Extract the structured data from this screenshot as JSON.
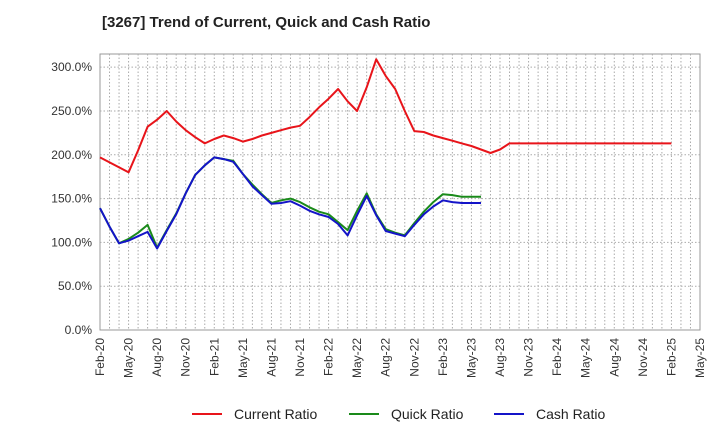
{
  "chart_data": {
    "type": "line",
    "title": "[3267]  Trend of Current, Quick and Cash Ratio",
    "xlabel": "",
    "ylabel": "",
    "ylim": [
      0,
      315
    ],
    "yticks": [
      0,
      50,
      100,
      150,
      200,
      250,
      300
    ],
    "ytick_labels": [
      "0.0%",
      "50.0%",
      "100.0%",
      "150.0%",
      "200.0%",
      "250.0%",
      "300.0%"
    ],
    "categories": [
      "Feb-20",
      "May-20",
      "Aug-20",
      "Nov-20",
      "Feb-21",
      "May-21",
      "Aug-21",
      "Nov-21",
      "Feb-22",
      "May-22",
      "Aug-22",
      "Nov-22",
      "Feb-23",
      "May-23",
      "Aug-23",
      "Nov-23",
      "Feb-24",
      "May-24",
      "Aug-24",
      "Nov-24",
      "Feb-25",
      "May-25"
    ],
    "x_label_index_step": 3,
    "grid": true,
    "legend_position": "bottom",
    "series": [
      {
        "name": "Current Ratio",
        "color": "#e8141a",
        "x": [
          0,
          3,
          4,
          5,
          6,
          7,
          8,
          9,
          10,
          11,
          12,
          13,
          14,
          15,
          16,
          17,
          18,
          19,
          20,
          21,
          22,
          23,
          24,
          25,
          26,
          27,
          28,
          29,
          30,
          31,
          32,
          33,
          34,
          35,
          36,
          37,
          38,
          39,
          40,
          41,
          42,
          43,
          44,
          45,
          46,
          47,
          48,
          49,
          50,
          51,
          52,
          53,
          54,
          55,
          56,
          57,
          58,
          59,
          60
        ],
        "values": [
          197,
          180,
          205,
          232,
          240,
          250,
          238,
          228,
          220,
          213,
          218,
          222,
          219,
          215,
          218,
          222,
          225,
          228,
          231,
          233,
          243,
          254,
          264,
          275,
          261,
          250,
          277,
          309,
          290,
          275,
          250,
          227,
          226,
          222,
          219,
          216,
          213,
          210,
          206,
          202,
          206,
          213,
          213,
          213,
          213,
          213,
          213,
          213,
          213,
          213,
          213,
          213,
          213,
          213,
          213,
          213,
          213,
          213,
          213
        ]
      },
      {
        "name": "Quick Ratio",
        "color": "#1a8a1a",
        "x": [
          0,
          1,
          2,
          3,
          4,
          5,
          6,
          7,
          8,
          9,
          10,
          11,
          12,
          13,
          14,
          15,
          16,
          17,
          18,
          19,
          20,
          21,
          22,
          23,
          24,
          25,
          26,
          27,
          28,
          29,
          30,
          31,
          32,
          33,
          34,
          35,
          36,
          37,
          38,
          39,
          40
        ],
        "values": [
          139,
          118,
          99,
          104,
          111,
          120,
          94,
          114,
          133,
          156,
          177,
          188,
          197,
          195,
          193,
          178,
          166,
          155,
          145,
          148,
          150,
          146,
          140,
          135,
          132,
          123,
          114,
          136,
          156,
          132,
          115,
          111,
          108,
          122,
          135,
          146,
          155,
          154,
          152,
          152,
          152
        ]
      },
      {
        "name": "Cash Ratio",
        "color": "#1414c8",
        "x": [
          0,
          1,
          2,
          3,
          4,
          5,
          6,
          7,
          8,
          9,
          10,
          11,
          12,
          13,
          14,
          15,
          16,
          17,
          18,
          19,
          20,
          21,
          22,
          23,
          24,
          25,
          26,
          27,
          28,
          29,
          30,
          31,
          32,
          33,
          34,
          35,
          36,
          37,
          38,
          39,
          40
        ],
        "values": [
          139,
          118,
          99,
          102,
          107,
          112,
          93,
          113,
          132,
          156,
          177,
          188,
          197,
          195,
          192,
          178,
          164,
          154,
          144,
          145,
          147,
          142,
          136,
          132,
          129,
          121,
          108,
          131,
          153,
          131,
          113,
          110,
          107,
          120,
          132,
          141,
          148,
          146,
          145,
          145,
          145
        ]
      }
    ]
  }
}
